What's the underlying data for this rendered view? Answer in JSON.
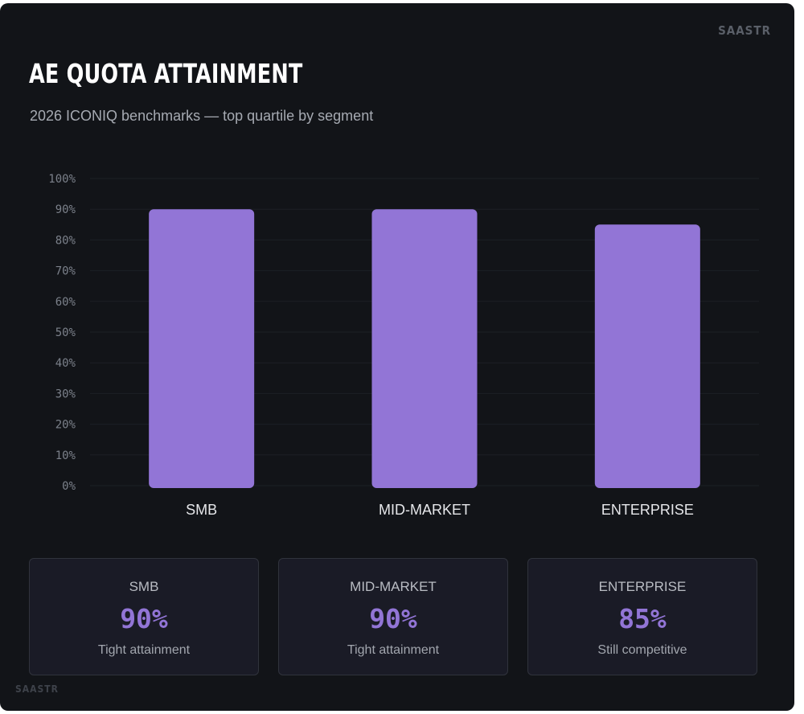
{
  "brand": "SAASTR",
  "title": "AE QUOTA ATTAINMENT",
  "subtitle": "2026 ICONIQ benchmarks — top quartile by segment",
  "colors": {
    "background": "#121418",
    "bar": "#9275d6",
    "accent": "#9275d6"
  },
  "chart_data": {
    "type": "bar",
    "categories": [
      "SMB",
      "MID-MARKET",
      "ENTERPRISE"
    ],
    "values": [
      90,
      90,
      85
    ],
    "ylim": [
      0,
      100
    ],
    "yticks": [
      "0%",
      "10%",
      "20%",
      "30%",
      "40%",
      "50%",
      "60%",
      "70%",
      "80%",
      "90%",
      "100%"
    ],
    "grid": true,
    "title": "",
    "xlabel": "",
    "ylabel": ""
  },
  "stats": [
    {
      "label": "SMB",
      "value": "90%",
      "note": "Tight attainment"
    },
    {
      "label": "MID-MARKET",
      "value": "90%",
      "note": "Tight attainment"
    },
    {
      "label": "ENTERPRISE",
      "value": "85%",
      "note": "Still competitive"
    }
  ]
}
